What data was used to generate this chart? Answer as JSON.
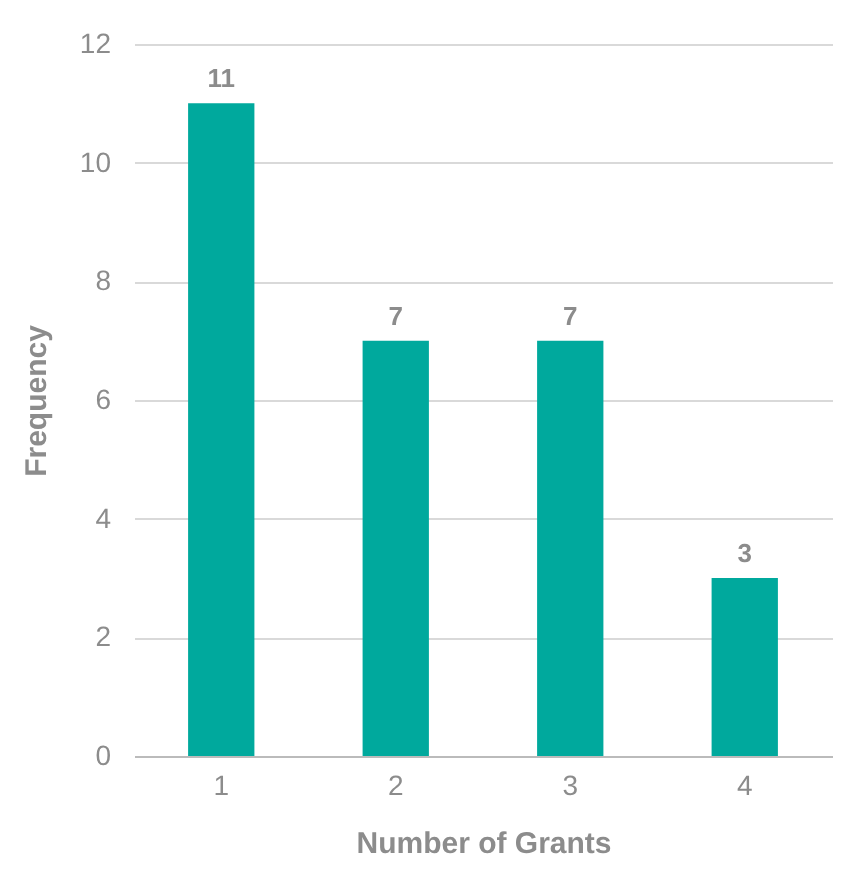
{
  "chart_data": {
    "type": "bar",
    "xlabel": "Number of Grants",
    "ylabel": "Frequency",
    "categories": [
      "1",
      "2",
      "3",
      "4"
    ],
    "values": [
      11,
      7,
      7,
      3
    ],
    "color": "#00a99d",
    "ylim": [
      0,
      12
    ],
    "yticks": [
      0,
      2,
      4,
      6,
      8,
      10,
      12
    ],
    "grid": "y",
    "data_labels": true
  }
}
